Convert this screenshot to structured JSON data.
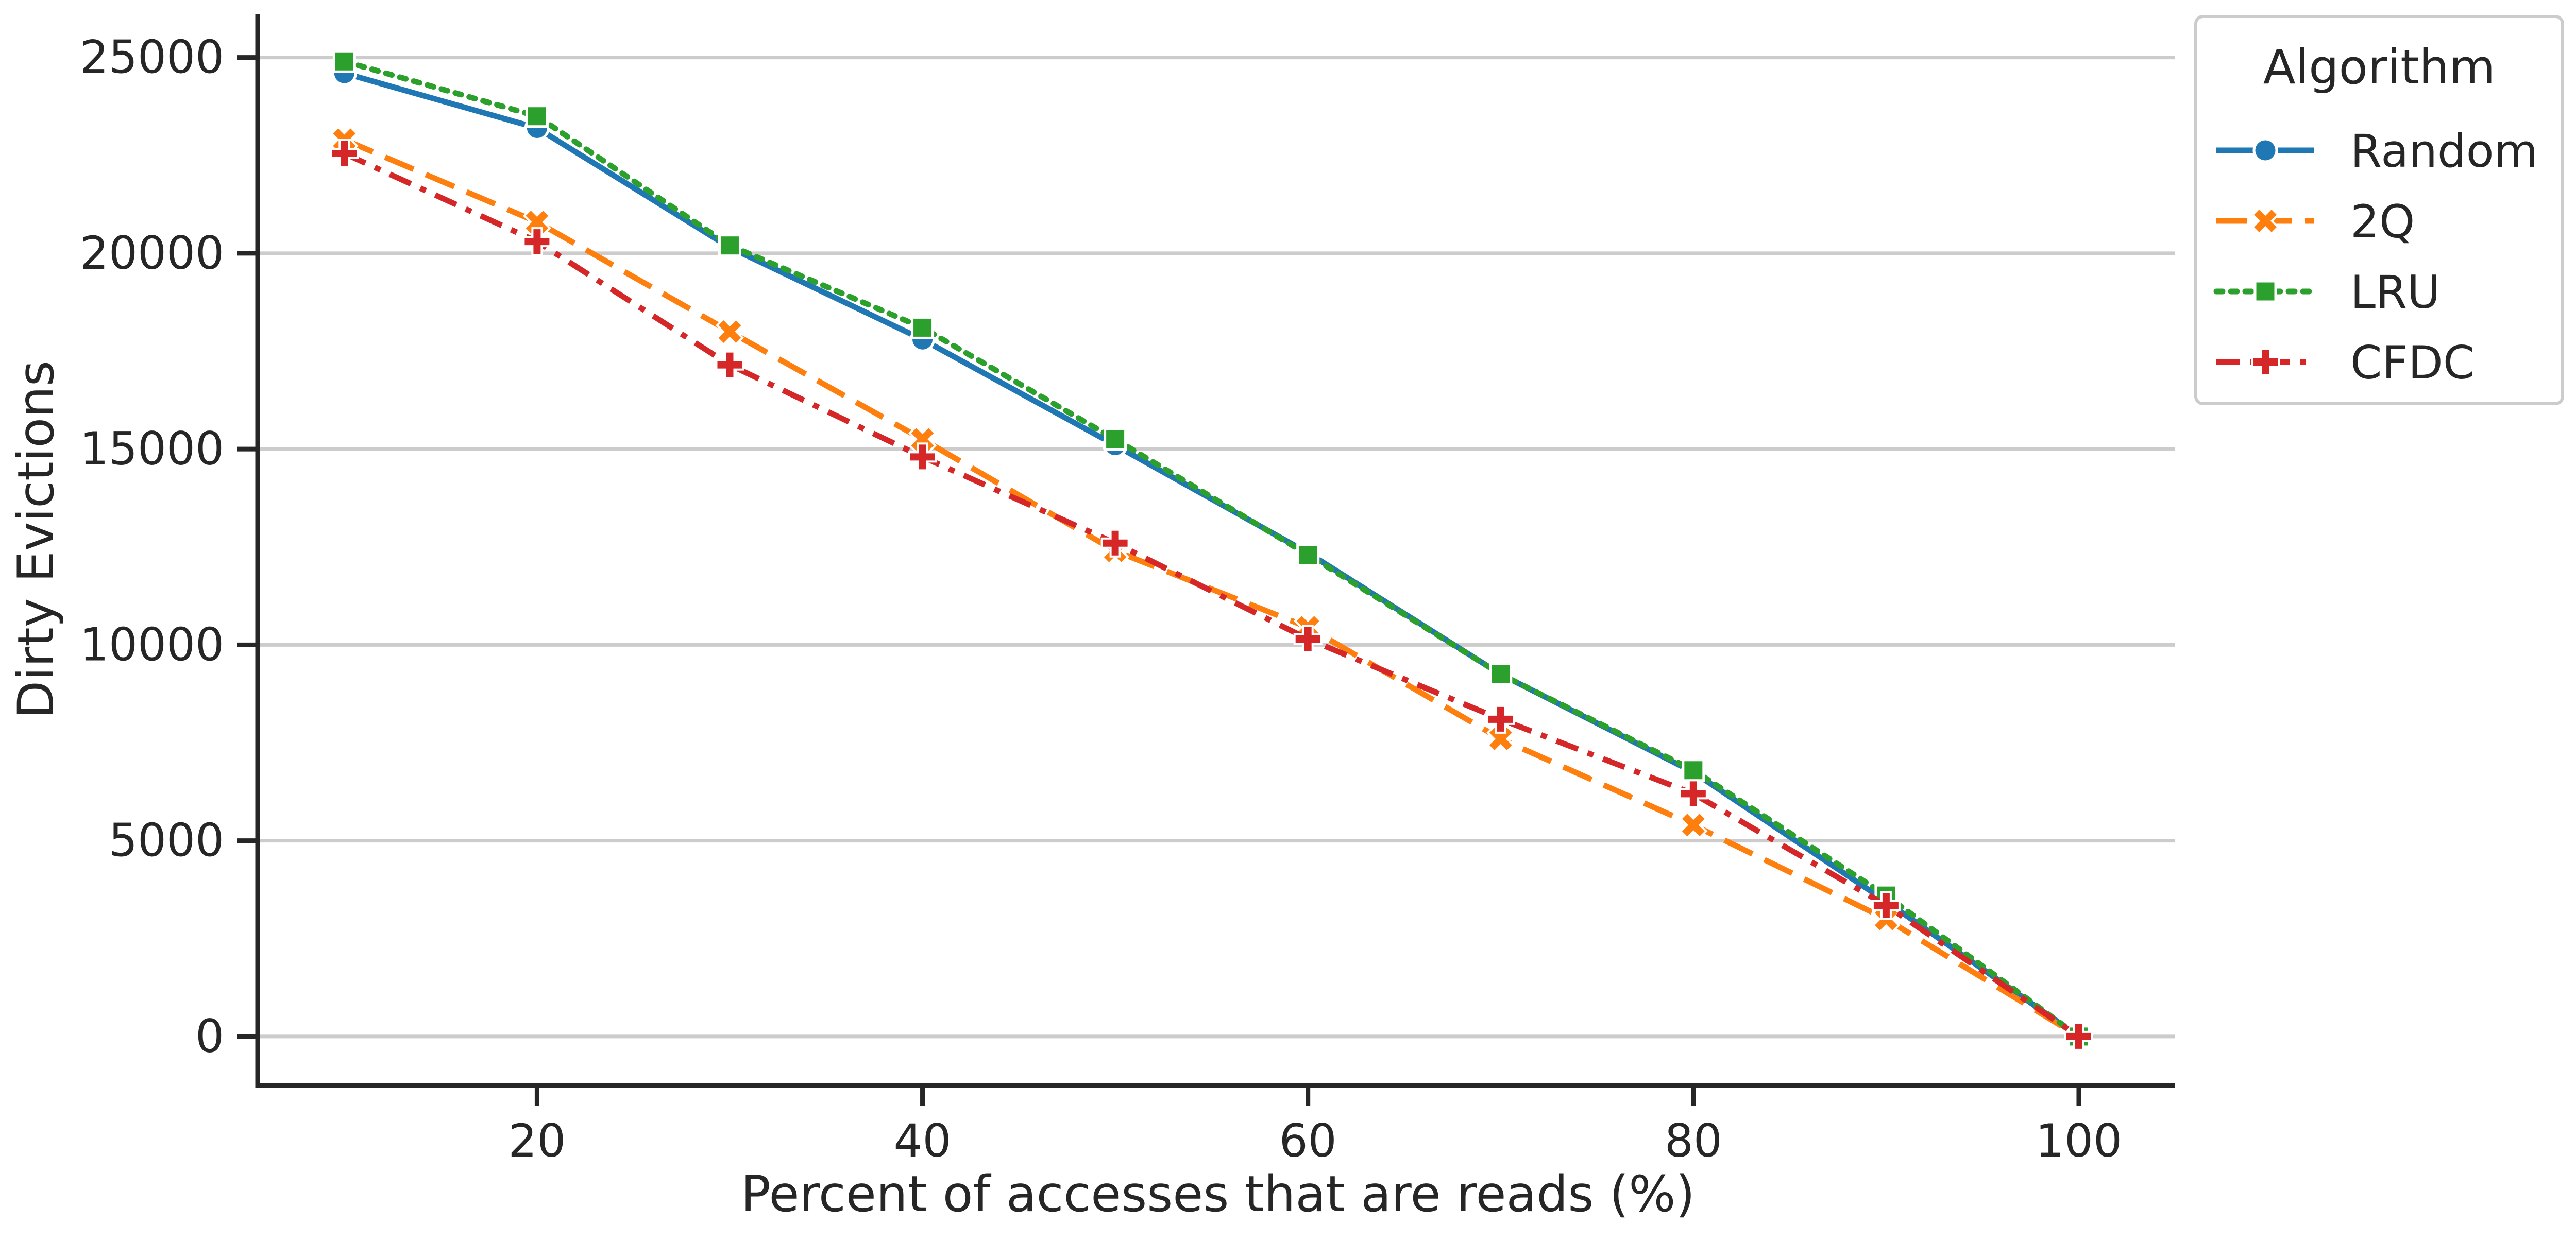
{
  "chart_data": {
    "type": "line",
    "title": "",
    "xlabel": "Percent of accesses that are reads (%)",
    "ylabel": "Dirty Evictions",
    "x": [
      10,
      20,
      30,
      40,
      50,
      60,
      70,
      80,
      90,
      100
    ],
    "xticks": [
      20,
      40,
      60,
      80,
      100
    ],
    "yticks": [
      0,
      5000,
      10000,
      15000,
      20000,
      25000
    ],
    "xlim": [
      5.5,
      105
    ],
    "ylim": [
      -1250,
      26100
    ],
    "grid": "horizontal",
    "legend": {
      "title": "Algorithm",
      "placement": "outside top-right"
    },
    "series": [
      {
        "name": "Random",
        "color": "#1f77b4",
        "marker": "circle",
        "dash": "solid",
        "values": [
          24600,
          23200,
          20150,
          17800,
          15100,
          12350,
          9250,
          6750,
          3450,
          0
        ]
      },
      {
        "name": "2Q",
        "color": "#ff7f0e",
        "marker": "x",
        "dash": "dashed",
        "values": [
          22900,
          20800,
          18000,
          15250,
          12400,
          10450,
          7600,
          5400,
          3000,
          0
        ]
      },
      {
        "name": "LRU",
        "color": "#2ca02c",
        "marker": "square",
        "dash": "dotted",
        "values": [
          24900,
          23500,
          20200,
          18100,
          15250,
          12300,
          9250,
          6800,
          3600,
          0
        ]
      },
      {
        "name": "CFDC",
        "color": "#d62728",
        "marker": "plus",
        "dash": "dashdot",
        "values": [
          22550,
          20300,
          17150,
          14800,
          12600,
          10150,
          8100,
          6200,
          3350,
          0
        ]
      }
    ]
  }
}
